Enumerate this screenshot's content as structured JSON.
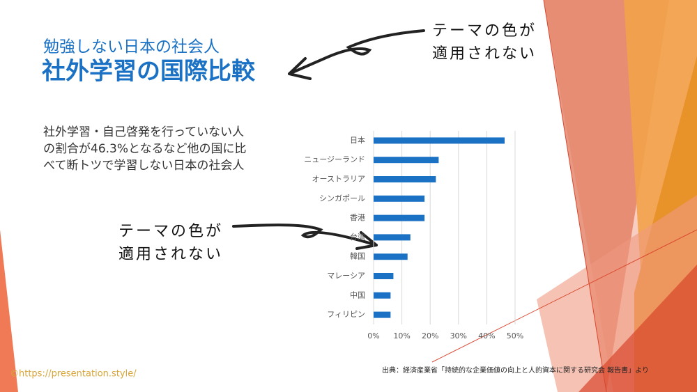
{
  "heading": {
    "subtitle": "勉強しない日本の社会人",
    "title": "社外学習の国際比較"
  },
  "description": [
    "社外学習・自己啓発を行っていない人",
    "の割合が46.3%となるなど他の国に比",
    "べて断トツで学習しない日本の社会人"
  ],
  "annotations": [
    [
      "テーマの色が",
      "適用されない"
    ],
    [
      "テーマの色が",
      "適用されない"
    ]
  ],
  "source": "出典：経済産業省「持続的な企業価値の向上と人的資本に関する研究会 報告書」より",
  "copyright": "©https://presentation.style/",
  "chart_data": {
    "type": "bar",
    "orientation": "horizontal",
    "categories": [
      "日本",
      "ニュージーランド",
      "オーストラリア",
      "シンガポール",
      "香港",
      "台湾",
      "韓国",
      "マレーシア",
      "中国",
      "フィリピン"
    ],
    "values": [
      46.3,
      23,
      22,
      18,
      18,
      13,
      12,
      7,
      6,
      6
    ],
    "color": "#1b72c4",
    "xlim": [
      0,
      50
    ],
    "xticks": [
      {
        "value": 0,
        "label": "0%"
      },
      {
        "value": 10,
        "label": "10%"
      },
      {
        "value": 20,
        "label": "20%"
      },
      {
        "value": 30,
        "label": "30%"
      },
      {
        "value": 40,
        "label": "40%"
      },
      {
        "value": 50,
        "label": "50%"
      }
    ],
    "grid": true
  }
}
